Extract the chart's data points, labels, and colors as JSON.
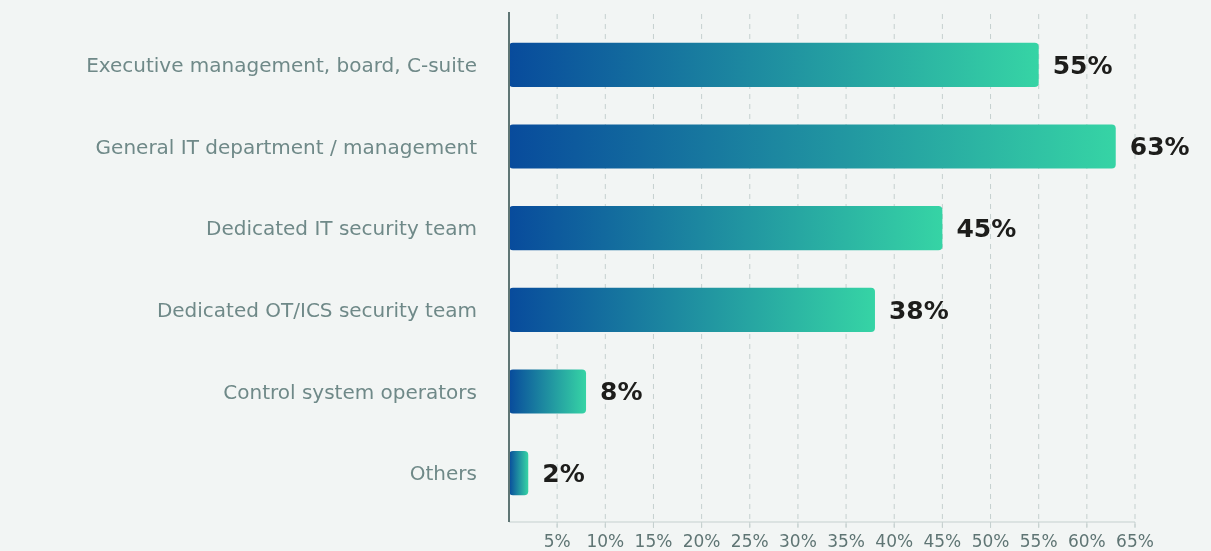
{
  "chart_data": {
    "type": "bar",
    "orientation": "horizontal",
    "categories": [
      "Executive management, board, C-suite",
      "General IT department / management",
      "Dedicated IT security team",
      "Dedicated OT/ICS security team",
      "Control system operators",
      "Others"
    ],
    "values": [
      55,
      63,
      45,
      38,
      8,
      2
    ],
    "value_labels": [
      "55%",
      "63%",
      "45%",
      "38%",
      "8%",
      "2%"
    ],
    "color": "#1592b8",
    "xlim": [
      0,
      65
    ],
    "xticks": [
      {
        "value": 5,
        "label": "5%"
      },
      {
        "value": 10,
        "label": "10%"
      },
      {
        "value": 15,
        "label": "15%"
      },
      {
        "value": 20,
        "label": "20%"
      },
      {
        "value": 25,
        "label": "25%"
      },
      {
        "value": 30,
        "label": "30%"
      },
      {
        "value": 35,
        "label": "35%"
      },
      {
        "value": 40,
        "label": "40%"
      },
      {
        "value": 45,
        "label": "45%"
      },
      {
        "value": 50,
        "label": "50%"
      },
      {
        "value": 55,
        "label": "55%"
      },
      {
        "value": 60,
        "label": "60%"
      },
      {
        "value": 65,
        "label": "65%"
      }
    ],
    "grid": "x"
  }
}
